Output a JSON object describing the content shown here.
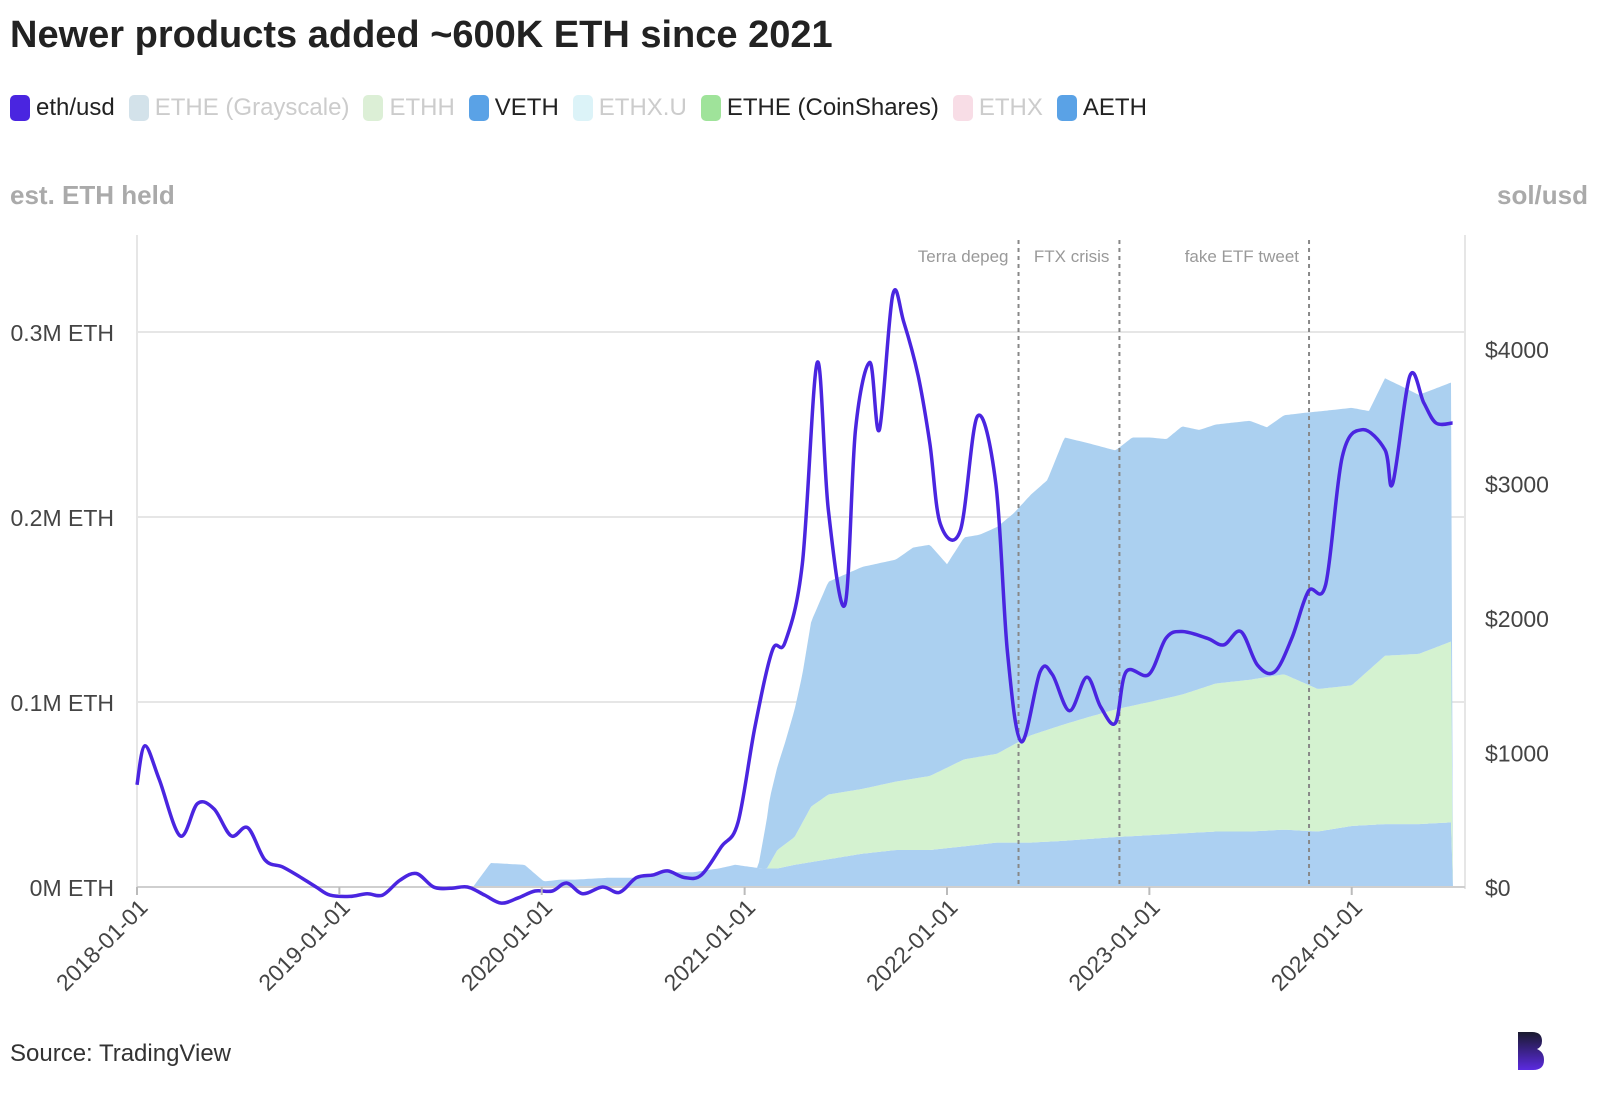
{
  "title": "Newer products added ~600K ETH since 2021",
  "legend": [
    {
      "label": "eth/usd",
      "color": "#4a25e0",
      "muted": false
    },
    {
      "label": "ETHE (Grayscale)",
      "color": "#d3e2ea",
      "muted": true
    },
    {
      "label": "ETHH",
      "color": "#dcefd6",
      "muted": true
    },
    {
      "label": "VETH",
      "color": "#5aa2e6",
      "muted": false
    },
    {
      "label": "ETHX.U",
      "color": "#dcf3f8",
      "muted": true
    },
    {
      "label": "ETHE (CoinShares)",
      "color": "#9fe39a",
      "muted": false
    },
    {
      "label": "ETHX",
      "color": "#f8dde6",
      "muted": true
    },
    {
      "label": "AETH",
      "color": "#5aa2e6",
      "muted": false
    }
  ],
  "axis": {
    "left_title": "est. ETH held",
    "right_title": "sol/usd"
  },
  "source": "Source: TradingView",
  "colors": {
    "eth_line": "#4a25e0",
    "aeth_area": "#abd0f0",
    "coinshares_area": "#d4f2d0",
    "veth_area": "#acd0f2",
    "muted_text": "#cccccc",
    "annotation": "#999999"
  },
  "chart_data": {
    "type": "area",
    "x_ticks": [
      "2018-01-01",
      "2019-01-01",
      "2020-01-01",
      "2021-01-01",
      "2022-01-01",
      "2023-01-01",
      "2024-01-01"
    ],
    "y_left": {
      "ticks": [
        "0M ETH",
        "0.1M ETH",
        "0.2M ETH",
        "0.3M ETH"
      ],
      "values": [
        0,
        0.1,
        0.2,
        0.3
      ],
      "unit": "M ETH"
    },
    "y_right": {
      "ticks": [
        "$0",
        "$1000",
        "$2000",
        "$3000",
        "$4000"
      ],
      "values": [
        0,
        1000,
        2000,
        3000,
        4000
      ]
    },
    "annotations": [
      {
        "label": "Terra depeg",
        "date": "2022-05-10"
      },
      {
        "label": "FTX crisis",
        "date": "2022-11-08"
      },
      {
        "label": "fake ETF tweet",
        "date": "2023-10-16"
      }
    ],
    "series": [
      {
        "name": "VETH",
        "axis": "left",
        "color": "#acd0f2",
        "x": [
          "2019-08-30",
          "2019-10-01",
          "2019-12-01",
          "2020-01-05",
          "2020-02-05",
          "2020-03-01",
          "2020-05-01",
          "2020-07-01",
          "2020-08-01",
          "2020-10-01",
          "2020-11-15",
          "2020-12-15",
          "2021-02-01",
          "2021-03-01",
          "2021-04-01",
          "2021-06-01",
          "2021-08-01",
          "2021-10-01",
          "2021-12-01",
          "2022-02-01",
          "2022-04-01",
          "2022-06-01",
          "2022-08-01",
          "2022-09-15",
          "2022-11-01",
          "2023-01-01",
          "2023-03-01",
          "2023-05-01",
          "2023-07-01",
          "2023-09-01",
          "2023-11-01",
          "2024-01-01",
          "2024-03-01",
          "2024-05-01",
          "2024-07-01"
        ],
        "y": [
          0,
          0.013,
          0.012,
          0.003,
          0.004,
          0.004,
          0.005,
          0.005,
          0.008,
          0.008,
          0.01,
          0.012,
          0.01,
          0.01,
          0.012,
          0.015,
          0.018,
          0.02,
          0.02,
          0.022,
          0.024,
          0.024,
          0.025,
          0.026,
          0.027,
          0.028,
          0.029,
          0.03,
          0.03,
          0.031,
          0.03,
          0.033,
          0.034,
          0.034,
          0.035
        ]
      },
      {
        "name": "ETHE (CoinShares)",
        "axis": "left",
        "color": "#d4f2d0",
        "x": [
          "2021-02-10",
          "2021-03-01",
          "2021-04-01",
          "2021-05-01",
          "2021-06-01",
          "2021-08-01",
          "2021-10-01",
          "2021-12-01",
          "2022-02-01",
          "2022-04-01",
          "2022-06-01",
          "2022-08-01",
          "2022-09-15",
          "2022-11-01",
          "2023-01-01",
          "2023-03-01",
          "2023-05-01",
          "2023-07-01",
          "2023-09-01",
          "2023-11-01",
          "2024-01-01",
          "2024-03-01",
          "2024-05-01",
          "2024-07-01"
        ],
        "y": [
          0,
          0.01,
          0.015,
          0.03,
          0.035,
          0.035,
          0.037,
          0.04,
          0.047,
          0.048,
          0.058,
          0.063,
          0.066,
          0.069,
          0.072,
          0.075,
          0.08,
          0.082,
          0.084,
          0.077,
          0.076,
          0.091,
          0.092,
          0.098
        ]
      },
      {
        "name": "AETH",
        "axis": "left",
        "color": "#abd0f0",
        "x": [
          "2021-01-25",
          "2021-02-15",
          "2021-03-15",
          "2021-04-15",
          "2021-05-01",
          "2021-06-01",
          "2021-08-01",
          "2021-10-01",
          "2021-11-01",
          "2021-12-01",
          "2022-01-01",
          "2022-02-01",
          "2022-03-01",
          "2022-05-01",
          "2022-06-01",
          "2022-07-01",
          "2022-08-01",
          "2022-09-01",
          "2022-11-01",
          "2022-12-01",
          "2023-01-01",
          "2023-02-01",
          "2023-03-01",
          "2023-04-01",
          "2023-05-01",
          "2023-06-01",
          "2023-07-01",
          "2023-08-01",
          "2023-09-01",
          "2023-10-01",
          "2023-11-01",
          "2024-01-01",
          "2024-02-01",
          "2024-03-01",
          "2024-04-01",
          "2024-05-01",
          "2024-06-01",
          "2024-07-01"
        ],
        "y": [
          0,
          0.035,
          0.055,
          0.08,
          0.1,
          0.115,
          0.12,
          0.12,
          0.125,
          0.125,
          0.11,
          0.12,
          0.12,
          0.125,
          0.13,
          0.135,
          0.155,
          0.15,
          0.14,
          0.145,
          0.143,
          0.14,
          0.145,
          0.14,
          0.14,
          0.14,
          0.14,
          0.135,
          0.14,
          0.145,
          0.15,
          0.15,
          0.14,
          0.15,
          0.145,
          0.14,
          0.14,
          0.14
        ]
      }
    ],
    "line": {
      "name": "eth/usd",
      "axis": "right",
      "color": "#4a25e0",
      "x": [
        "2018-01-01",
        "2018-01-15",
        "2018-02-10",
        "2018-03-20",
        "2018-04-20",
        "2018-05-20",
        "2018-06-20",
        "2018-07-20",
        "2018-08-20",
        "2018-09-20",
        "2018-10-20",
        "2018-11-20",
        "2018-12-15",
        "2019-01-20",
        "2019-02-20",
        "2019-03-20",
        "2019-04-20",
        "2019-05-20",
        "2019-06-20",
        "2019-07-20",
        "2019-08-20",
        "2019-09-20",
        "2019-10-20",
        "2019-11-20",
        "2019-12-20",
        "2020-01-20",
        "2020-02-15",
        "2020-03-15",
        "2020-04-20",
        "2020-05-20",
        "2020-06-20",
        "2020-07-20",
        "2020-08-15",
        "2020-09-15",
        "2020-10-15",
        "2020-11-20",
        "2020-12-20",
        "2021-01-20",
        "2021-02-20",
        "2021-03-15",
        "2021-04-15",
        "2021-05-12",
        "2021-06-01",
        "2021-07-01",
        "2021-07-20",
        "2021-08-15",
        "2021-09-01",
        "2021-09-25",
        "2021-10-15",
        "2021-11-10",
        "2021-12-01",
        "2021-12-20",
        "2022-01-25",
        "2022-02-25",
        "2022-03-30",
        "2022-04-20",
        "2022-05-15",
        "2022-06-18",
        "2022-07-10",
        "2022-08-10",
        "2022-09-10",
        "2022-10-05",
        "2022-11-01",
        "2022-11-20",
        "2022-12-31",
        "2023-01-31",
        "2023-03-01",
        "2023-04-15",
        "2023-05-15",
        "2023-06-15",
        "2023-07-15",
        "2023-08-15",
        "2023-09-15",
        "2023-10-15",
        "2023-11-15",
        "2023-12-15",
        "2024-01-20",
        "2024-03-01",
        "2024-03-15",
        "2024-04-15",
        "2024-05-10",
        "2024-06-01",
        "2024-07-01"
      ],
      "y": [
        760,
        1050,
        800,
        380,
        620,
        580,
        380,
        440,
        200,
        150,
        80,
        0,
        -60,
        -70,
        -50,
        -60,
        50,
        100,
        0,
        -10,
        0,
        -60,
        -120,
        -80,
        -30,
        -30,
        30,
        -50,
        0,
        -40,
        70,
        90,
        120,
        70,
        90,
        300,
        480,
        1200,
        1760,
        1820,
        2400,
        3900,
        2800,
        2100,
        3400,
        3900,
        3400,
        4400,
        4200,
        3800,
        3300,
        2700,
        2650,
        3500,
        3000,
        1750,
        1080,
        1600,
        1580,
        1310,
        1560,
        1340,
        1220,
        1600,
        1580,
        1850,
        1900,
        1850,
        1800,
        1900,
        1650,
        1600,
        1850,
        2200,
        2250,
        3200,
        3400,
        3250,
        3000,
        3800,
        3600,
        3450,
        3450
      ]
    }
  }
}
